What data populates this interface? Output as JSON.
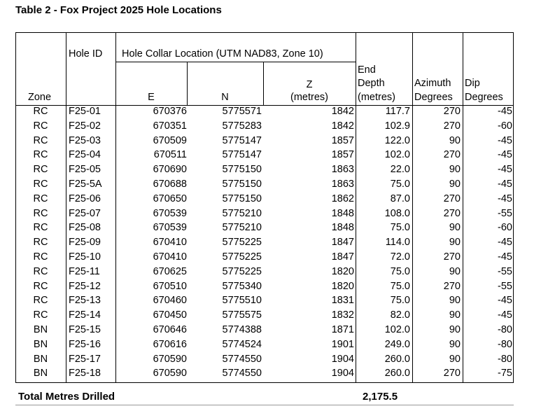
{
  "title": "Table 2 - Fox Project 2025 Hole Locations",
  "headers": {
    "zone": "Zone",
    "hole_id": "Hole ID",
    "collar_group": "Hole Collar Location (UTM NAD83, Zone 10)",
    "e": "E",
    "n": "N",
    "z_line1": "Z",
    "z_line2": "(metres)",
    "end_line1": "End",
    "end_line2": "Depth",
    "end_line3": "(metres)",
    "az_line1": "Azimuth",
    "az_line2": "Degrees",
    "dip_line1": "Dip",
    "dip_line2": "Degrees"
  },
  "rows": [
    [
      "RC",
      "F25-01",
      "670376",
      "5775571",
      "1842",
      "117.7",
      "270",
      "-45"
    ],
    [
      "RC",
      "F25-02",
      "670351",
      "5775283",
      "1842",
      "102.9",
      "270",
      "-60"
    ],
    [
      "RC",
      "F25-03",
      "670509",
      "5775147",
      "1857",
      "122.0",
      "90",
      "-45"
    ],
    [
      "RC",
      "F25-04",
      "670511",
      "5775147",
      "1857",
      "102.0",
      "270",
      "-45"
    ],
    [
      "RC",
      "F25-05",
      "670690",
      "5775150",
      "1863",
      "22.0",
      "90",
      "-45"
    ],
    [
      "RC",
      "F25-5A",
      "670688",
      "5775150",
      "1863",
      "75.0",
      "90",
      "-45"
    ],
    [
      "RC",
      "F25-06",
      "670650",
      "5775150",
      "1862",
      "87.0",
      "270",
      "-45"
    ],
    [
      "RC",
      "F25-07",
      "670539",
      "5775210",
      "1848",
      "108.0",
      "270",
      "-55"
    ],
    [
      "RC",
      "F25-08",
      "670539",
      "5775210",
      "1848",
      "75.0",
      "90",
      "-60"
    ],
    [
      "RC",
      "F25-09",
      "670410",
      "5775225",
      "1847",
      "114.0",
      "90",
      "-45"
    ],
    [
      "RC",
      "F25-10",
      "670410",
      "5775225",
      "1847",
      "72.0",
      "270",
      "-45"
    ],
    [
      "RC",
      "F25-11",
      "670625",
      "5775225",
      "1820",
      "75.0",
      "90",
      "-55"
    ],
    [
      "RC",
      "F25-12",
      "670510",
      "5775340",
      "1820",
      "75.0",
      "270",
      "-55"
    ],
    [
      "RC",
      "F25-13",
      "670460",
      "5775510",
      "1831",
      "75.0",
      "90",
      "-45"
    ],
    [
      "RC",
      "F25-14",
      "670450",
      "5775575",
      "1832",
      "82.0",
      "90",
      "-45"
    ],
    [
      "BN",
      "F25-15",
      "670646",
      "5774388",
      "1871",
      "102.0",
      "90",
      "-80"
    ],
    [
      "BN",
      "F25-16",
      "670616",
      "5774524",
      "1901",
      "249.0",
      "90",
      "-80"
    ],
    [
      "BN",
      "F25-17",
      "670590",
      "5774550",
      "1904",
      "260.0",
      "90",
      "-80"
    ],
    [
      "BN",
      "F25-18",
      "670590",
      "5774550",
      "1904",
      "260.0",
      "270",
      "-75"
    ]
  ],
  "total": {
    "label": "Total  Metres Drilled",
    "value": "2,175.5"
  }
}
